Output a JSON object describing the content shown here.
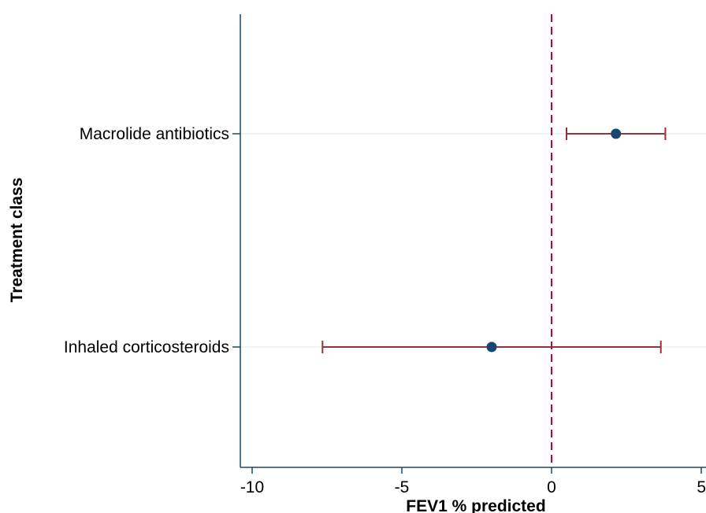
{
  "chart_data": {
    "type": "scatter",
    "subtype": "forest-plot",
    "title": "",
    "xlabel": "FEV1 % predicted",
    "ylabel": "Treatment class",
    "xlim": [
      -10.4,
      5.2
    ],
    "xticks": [
      {
        "value": -10,
        "label": "-10"
      },
      {
        "value": -5,
        "label": "-5"
      },
      {
        "value": 0,
        "label": "0"
      },
      {
        "value": 5,
        "label": "5"
      }
    ],
    "reference_line": {
      "x": 0,
      "style": "dashed"
    },
    "grid": "horizontal",
    "rows": [
      {
        "label": "Macrolide antibiotics",
        "estimate": 2.15,
        "ci_low": 0.5,
        "ci_high": 3.8
      },
      {
        "label": "Inhaled corticosteroids",
        "estimate": -2.0,
        "ci_low": -7.65,
        "ci_high": 3.65
      }
    ],
    "colors": {
      "point": "#1a476f",
      "ci": "#90353b",
      "reference_line": "#c10534",
      "axis": "#1a476f",
      "grid": "#eaf2f3"
    }
  }
}
